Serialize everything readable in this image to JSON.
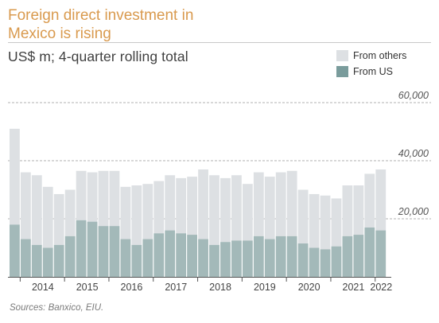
{
  "title_lines": [
    "Foreign direct investment in",
    "Mexico is rising"
  ],
  "subtitle": "US$ m; 4-quarter rolling total",
  "source": "Sources: Banxico, EIU.",
  "colors": {
    "title": "#d99a4e",
    "others": "#dde0e3",
    "us": "#a3b9b9",
    "legend_us": "#7a9c9c",
    "grid": "#b0b0b0"
  },
  "chart_data": {
    "type": "bar",
    "stacked": true,
    "ylim": [
      0,
      60000
    ],
    "yticks": [
      20000,
      40000,
      60000
    ],
    "ytick_labels": [
      "20,000",
      "40,000",
      "60,000"
    ],
    "x_year_labels": [
      "2014",
      "2015",
      "2016",
      "2017",
      "2018",
      "2019",
      "2020",
      "2021",
      "2022"
    ],
    "year_start_index": [
      1,
      5,
      9,
      13,
      17,
      21,
      25,
      29,
      33
    ],
    "legend": [
      "From others",
      "From US"
    ],
    "series": [
      {
        "name": "From US",
        "values": [
          18000,
          13000,
          11000,
          10000,
          11000,
          14000,
          19500,
          19000,
          17500,
          17500,
          13000,
          11000,
          13000,
          15000,
          16000,
          15000,
          14500,
          13000,
          11000,
          12000,
          12500,
          12500,
          14000,
          13000,
          14000,
          14000,
          11500,
          10000,
          9500,
          10500,
          14000,
          14500,
          17000,
          16000
        ]
      },
      {
        "name": "From others",
        "values": [
          33000,
          23000,
          24000,
          21000,
          17500,
          16000,
          17000,
          17000,
          19000,
          19000,
          18000,
          20500,
          19000,
          18000,
          19000,
          19000,
          20000,
          24000,
          24000,
          22000,
          22500,
          19500,
          22000,
          21500,
          22000,
          22500,
          18500,
          18500,
          18500,
          16500,
          17500,
          17000,
          18500,
          21000
        ]
      }
    ]
  }
}
